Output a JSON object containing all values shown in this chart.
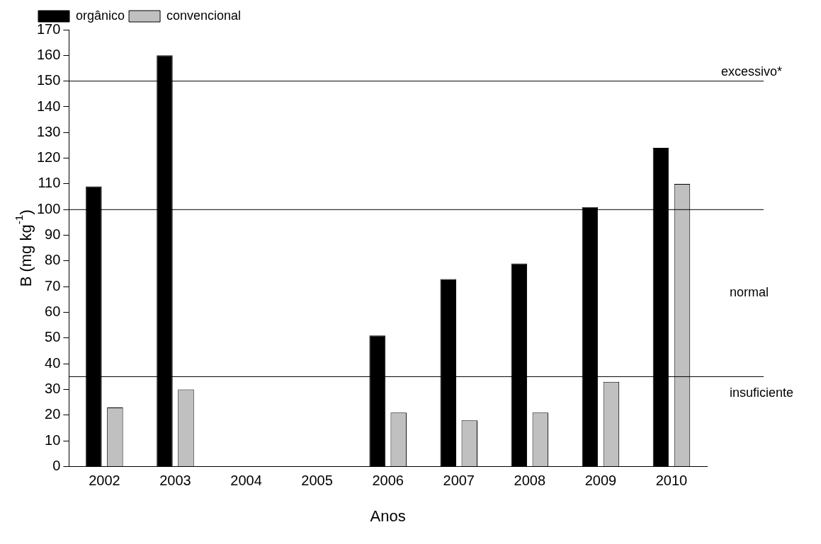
{
  "chart_data": {
    "type": "bar",
    "xlabel": "Anos",
    "ylabel": "B (mg kg$^{-1}$)",
    "categories": [
      "2002",
      "2003",
      "2004",
      "2005",
      "2006",
      "2007",
      "2008",
      "2009",
      "2010"
    ],
    "series": [
      {
        "name": "orgânico",
        "color": "#000000",
        "values": [
          109,
          160,
          null,
          null,
          51,
          73,
          79,
          101,
          124
        ]
      },
      {
        "name": "convencional",
        "color": "#c0c0c0",
        "values": [
          23,
          30,
          null,
          null,
          21,
          18,
          21,
          33,
          110
        ]
      }
    ],
    "ylim": [
      0,
      170
    ],
    "yticks": [
      0,
      10,
      20,
      30,
      40,
      50,
      60,
      70,
      80,
      90,
      100,
      110,
      120,
      130,
      140,
      150,
      160,
      170
    ],
    "grid": false,
    "legend": "top",
    "ref_lines": [
      {
        "axis": "y",
        "value": 150,
        "label": "excessivo*",
        "color": "#000000"
      },
      {
        "axis": "y",
        "value": 100,
        "color": "#000000"
      },
      {
        "axis": "y",
        "value": 35,
        "color": "#000000"
      }
    ],
    "annotations": [
      "normal",
      "insuficiente"
    ]
  }
}
